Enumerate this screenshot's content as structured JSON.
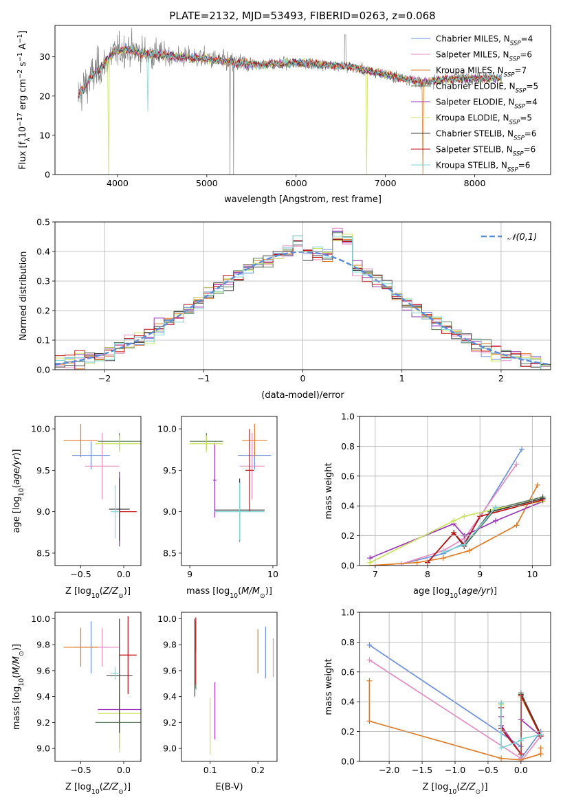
{
  "figure": {
    "title": "PLATE=2132, MJD=53493, FIBERID=0263, z=0.068"
  },
  "series_styles": [
    {
      "name": "Chabrier MILES",
      "nssp": "4",
      "color": "#6a8fdc"
    },
    {
      "name": "Salpeter MILES",
      "nssp": "6",
      "color": "#e78ac3"
    },
    {
      "name": "Kroupa MILES",
      "nssp": "7",
      "color": "#e07b24"
    },
    {
      "name": "Chabrier ELODIE",
      "nssp": "5",
      "color": "#5b7b5b"
    },
    {
      "name": "Salpeter ELODIE",
      "nssp": "4",
      "color": "#9b34b8"
    },
    {
      "name": "Kroupa ELODIE",
      "nssp": "5",
      "color": "#c8e35a"
    },
    {
      "name": "Chabrier STELIB",
      "nssp": "6",
      "color": "#3e3e3e"
    },
    {
      "name": "Salpeter STELIB",
      "nssp": "6",
      "color": "#c40f0f"
    },
    {
      "name": "Kroupa STELIB",
      "nssp": "6",
      "color": "#7fd6d6"
    }
  ],
  "chart_data": [
    {
      "id": "spectrum",
      "type": "line",
      "xlabel": "wavelength [Angstrom, rest frame]",
      "ylabel": "Flux [f_λ 10^-17 erg cm^-2 s^-1 A^-1]",
      "xlim": [
        3300,
        8850
      ],
      "ylim": [
        0,
        38
      ],
      "xticks": [
        4000,
        5000,
        6000,
        7000,
        8000
      ],
      "yticks": [
        0,
        10,
        20,
        30
      ],
      "legend_position": "upper-right",
      "data_color": "#7f7f7f",
      "continuum": [
        [
          3560,
          20
        ],
        [
          3650,
          23
        ],
        [
          3750,
          26
        ],
        [
          3850,
          28
        ],
        [
          3950,
          31
        ],
        [
          4100,
          32
        ],
        [
          4300,
          31
        ],
        [
          4500,
          30.5
        ],
        [
          4700,
          30
        ],
        [
          5000,
          29.5
        ],
        [
          5300,
          28.5
        ],
        [
          5600,
          28
        ],
        [
          6000,
          28.5
        ],
        [
          6300,
          28
        ],
        [
          6600,
          27.5
        ],
        [
          6800,
          26.5
        ],
        [
          7000,
          25.5
        ],
        [
          7200,
          24.5
        ],
        [
          7400,
          23.5
        ],
        [
          7600,
          24
        ],
        [
          7800,
          24.5
        ],
        [
          8000,
          24.5
        ],
        [
          8200,
          24.5
        ],
        [
          8300,
          24.5
        ]
      ]
    },
    {
      "id": "residuals",
      "type": "histogram",
      "xlabel": "(data-model)/error",
      "ylabel": "Normed distribution",
      "xlim": [
        -2.5,
        2.5
      ],
      "ylim": [
        0,
        0.5
      ],
      "xticks": [
        -2,
        -1,
        0,
        1,
        2
      ],
      "yticks": [
        0.0,
        0.1,
        0.2,
        0.3,
        0.4,
        0.5
      ],
      "bin_width": 0.1,
      "grid": true,
      "legend_position": "upper-right",
      "reference_curve": {
        "label": "𝒩(0,1)",
        "mean": 0,
        "sigma": 1,
        "color": "#5b8bd8"
      }
    },
    {
      "id": "age-vs-Z",
      "type": "errorbar",
      "xlabel": "Z [log10(Z/Z⊙)]",
      "ylabel": "age [log10(age/yr)]",
      "xlim": [
        -0.8,
        0.2
      ],
      "ylim": [
        8.35,
        10.15
      ],
      "xticks": [
        -0.5,
        0.0
      ],
      "yticks": [
        8.5,
        9.0,
        9.5,
        10.0
      ],
      "points": [
        {
          "series": 0,
          "x": -0.38,
          "xerr": 0.22,
          "y": 9.68,
          "yerr": 0.17
        },
        {
          "series": 1,
          "x": -0.25,
          "xerr": 0.2,
          "y": 9.55,
          "yerr": 0.4
        },
        {
          "series": 2,
          "x": -0.5,
          "xerr": 0.2,
          "y": 9.86,
          "yerr": 0.2
        },
        {
          "series": 3,
          "x": -0.05,
          "xerr": 0.25,
          "y": 9.85,
          "yerr": 0.1
        },
        {
          "series": 4,
          "x": -0.05,
          "xerr": 0.02,
          "y": 9.03,
          "yerr": 0.45
        },
        {
          "series": 5,
          "x": -0.05,
          "xerr": 0.28,
          "y": 9.82,
          "yerr": 0.1
        },
        {
          "series": 6,
          "x": -0.05,
          "xerr": 0.12,
          "y": 9.03,
          "yerr": 0.38
        },
        {
          "series": 7,
          "x": 0.05,
          "xerr": 0.1,
          "y": 9.0,
          "yerr": 0.0
        },
        {
          "series": 8,
          "x": -0.1,
          "xerr": 0.05,
          "y": 9.0,
          "yerr": 0.32
        }
      ]
    },
    {
      "id": "age-vs-mass",
      "type": "errorbar",
      "xlabel": "mass [log10(M/M⊙)]",
      "ylabel": "",
      "xlim": [
        8.9,
        10.05
      ],
      "ylim": [
        8.35,
        10.15
      ],
      "xticks": [
        9,
        10
      ],
      "yticks": [
        8.5,
        9.0,
        9.5,
        10.0
      ],
      "points": [
        {
          "series": 0,
          "x": 9.78,
          "xerr": 0.2,
          "y": 9.68,
          "yerr": 0.17
        },
        {
          "series": 1,
          "x": 9.75,
          "xerr": 0.15,
          "y": 9.55,
          "yerr": 0.4
        },
        {
          "series": 2,
          "x": 9.78,
          "xerr": 0.15,
          "y": 9.86,
          "yerr": 0.2
        },
        {
          "series": 3,
          "x": 9.2,
          "xerr": 0.2,
          "y": 9.85,
          "yerr": 0.1
        },
        {
          "series": 4,
          "x": 9.3,
          "xerr": 0.02,
          "y": 9.38,
          "yerr": 0.45
        },
        {
          "series": 5,
          "x": 9.2,
          "xerr": 0.2,
          "y": 9.82,
          "yerr": 0.1
        },
        {
          "series": 6,
          "x": 9.6,
          "xerr": 0.3,
          "y": 9.02,
          "yerr": 0.38
        },
        {
          "series": 7,
          "x": 9.72,
          "xerr": 0.05,
          "y": 9.5,
          "yerr": 0.5
        },
        {
          "series": 8,
          "x": 9.6,
          "xerr": 0.3,
          "y": 9.0,
          "yerr": 0.35
        }
      ]
    },
    {
      "id": "weight-vs-age",
      "type": "line",
      "xlabel": "age [log10(age/yr)]",
      "ylabel": "mass weight",
      "xlim": [
        6.7,
        10.35
      ],
      "ylim": [
        0,
        1
      ],
      "xticks": [
        7,
        8,
        9,
        10
      ],
      "yticks": [
        0.0,
        0.2,
        0.4,
        0.6,
        0.8,
        1.0
      ],
      "grid": true,
      "series": [
        {
          "series": 0,
          "x": [
            7.5,
            8.3,
            8.7,
            9.8
          ],
          "y": [
            0.01,
            0.08,
            0.15,
            0.78
          ]
        },
        {
          "series": 1,
          "x": [
            7.5,
            8.3,
            8.7,
            9.7
          ],
          "y": [
            0.01,
            0.1,
            0.18,
            0.68
          ]
        },
        {
          "series": 2,
          "x": [
            6.9,
            7.8,
            8.3,
            8.8,
            9.7,
            10.1
          ],
          "y": [
            0.0,
            0.02,
            0.05,
            0.1,
            0.27,
            0.54
          ]
        },
        {
          "series": 3,
          "x": [
            8.0,
            8.5,
            8.7,
            9.3,
            10.2
          ],
          "y": [
            0.02,
            0.22,
            0.13,
            0.38,
            0.46
          ]
        },
        {
          "series": 4,
          "x": [
            6.9,
            8.5,
            8.7,
            9.3,
            10.2
          ],
          "y": [
            0.05,
            0.28,
            0.2,
            0.3,
            0.43
          ]
        },
        {
          "series": 5,
          "x": [
            6.9,
            8.5,
            8.7,
            9.3,
            10.2
          ],
          "y": [
            0.02,
            0.3,
            0.33,
            0.38,
            0.43
          ]
        },
        {
          "series": 6,
          "x": [
            8.0,
            8.5,
            8.7,
            9.2,
            10.2
          ],
          "y": [
            0.02,
            0.22,
            0.13,
            0.36,
            0.45
          ]
        },
        {
          "series": 7,
          "x": [
            8.0,
            8.5,
            8.7,
            9.0,
            10.2
          ],
          "y": [
            0.02,
            0.22,
            0.14,
            0.33,
            0.44
          ]
        },
        {
          "series": 8,
          "x": [
            8.3,
            8.7,
            9.3
          ],
          "y": [
            0.09,
            0.14,
            0.39
          ]
        }
      ]
    },
    {
      "id": "mass-vs-Z",
      "type": "errorbar",
      "xlabel": "Z [log10(Z/Z⊙)]",
      "ylabel": "mass [log10(M/M⊙)]",
      "xlim": [
        -0.8,
        0.2
      ],
      "ylim": [
        8.9,
        10.05
      ],
      "xticks": [
        -0.5,
        0.0
      ],
      "yticks": [
        9.0,
        9.2,
        9.4,
        9.6,
        9.8,
        10.0
      ],
      "points": [
        {
          "series": 0,
          "x": -0.38,
          "xerr": 0.2,
          "y": 9.78,
          "yerr": 0.2
        },
        {
          "series": 1,
          "x": -0.25,
          "xerr": 0.2,
          "y": 9.78,
          "yerr": 0.15
        },
        {
          "series": 2,
          "x": -0.5,
          "xerr": 0.2,
          "y": 9.78,
          "yerr": 0.15
        },
        {
          "series": 3,
          "x": -0.05,
          "xerr": 0.28,
          "y": 9.2,
          "yerr": 0.2
        },
        {
          "series": 4,
          "x": -0.05,
          "xerr": 0.25,
          "y": 9.3,
          "yerr": 0.02
        },
        {
          "series": 5,
          "x": -0.05,
          "xerr": 0.25,
          "y": 9.27,
          "yerr": 0.3
        },
        {
          "series": 6,
          "x": -0.05,
          "xerr": 0.15,
          "y": 9.56,
          "yerr": 0.44
        },
        {
          "series": 7,
          "x": 0.05,
          "xerr": 0.1,
          "y": 9.72,
          "yerr": 0.3
        },
        {
          "series": 8,
          "x": -0.1,
          "xerr": 0.05,
          "y": 9.58,
          "yerr": 0.05
        }
      ]
    },
    {
      "id": "mass-vs-EBV",
      "type": "errorbar",
      "xlabel": "E(B-V)",
      "ylabel": "",
      "xlim": [
        0.04,
        0.24
      ],
      "ylim": [
        8.9,
        10.05
      ],
      "xticks": [
        0.1,
        0.2
      ],
      "yticks": [
        9.0,
        9.2,
        9.4,
        9.6,
        9.8,
        10.0
      ],
      "points": [
        {
          "series": 0,
          "x": 0.216,
          "xerr": 0,
          "y": 9.74,
          "yerr": 0.2
        },
        {
          "series": 1,
          "x": 0.232,
          "xerr": 0,
          "y": 9.7,
          "yerr": 0.15
        },
        {
          "series": 2,
          "x": 0.2,
          "xerr": 0,
          "y": 9.75,
          "yerr": 0.17
        },
        {
          "series": 3,
          "x": 0.07,
          "xerr": 0,
          "y": 9.72,
          "yerr": 0.26
        },
        {
          "series": 4,
          "x": 0.11,
          "xerr": 0,
          "y": 9.29,
          "yerr": 0.22
        },
        {
          "series": 5,
          "x": 0.1,
          "xerr": 0,
          "y": 9.17,
          "yerr": 0.22
        },
        {
          "series": 6,
          "x": 0.068,
          "xerr": 0,
          "y": 9.7,
          "yerr": 0.3
        },
        {
          "series": 7,
          "x": 0.07,
          "xerr": 0,
          "y": 9.75,
          "yerr": 0.26
        },
        {
          "series": 8,
          "x": 0.071,
          "xerr": 0,
          "y": 9.6,
          "yerr": 0.15
        }
      ]
    },
    {
      "id": "weight-vs-Z",
      "type": "line",
      "xlabel": "Z [log10(Z/Z⊙)]",
      "ylabel": "mass weight",
      "xlim": [
        -2.45,
        0.45
      ],
      "ylim": [
        0,
        1
      ],
      "xticks": [
        -2.0,
        -1.5,
        -1.0,
        -0.5,
        0.0
      ],
      "yticks": [
        0.0,
        0.2,
        0.4,
        0.6,
        0.8,
        1.0
      ],
      "grid": true,
      "series": [
        {
          "series": 0,
          "x": [
            -2.3,
            0.0,
            0.0,
            0.3,
            0.3
          ],
          "y": [
            0.78,
            0.1,
            0.02,
            0.2,
            0.17
          ]
        },
        {
          "series": 1,
          "x": [
            -2.3,
            0.0,
            0.0,
            0.3
          ],
          "y": [
            0.68,
            0.02,
            0.0,
            0.17
          ]
        },
        {
          "series": 2,
          "x": [
            -2.3,
            -2.3,
            -0.3,
            0.0,
            0.3,
            0.3
          ],
          "y": [
            0.54,
            0.27,
            0.02,
            0.01,
            0.05,
            0.09
          ]
        },
        {
          "series": 3,
          "x": [
            -0.3,
            -0.3,
            0.0,
            0.0,
            0.3
          ],
          "y": [
            0.38,
            0.24,
            0.05,
            0.46,
            0.18
          ]
        },
        {
          "series": 4,
          "x": [
            -0.3,
            -0.3,
            0.0,
            0.0,
            0.3
          ],
          "y": [
            0.3,
            0.24,
            0.05,
            0.28,
            0.17
          ]
        },
        {
          "series": 5,
          "x": [
            -0.3,
            -0.3,
            0.0,
            0.0,
            0.3
          ],
          "y": [
            0.38,
            0.22,
            0.05,
            0.43,
            0.17
          ]
        },
        {
          "series": 6,
          "x": [
            -0.3,
            -0.3,
            0.0,
            0.0,
            0.3
          ],
          "y": [
            0.39,
            0.22,
            0.05,
            0.45,
            0.18
          ]
        },
        {
          "series": 7,
          "x": [
            -0.3,
            -0.3,
            0.0,
            0.0,
            0.3
          ],
          "y": [
            0.36,
            0.22,
            0.05,
            0.44,
            0.17
          ]
        },
        {
          "series": 8,
          "x": [
            -0.3,
            -0.3,
            0.0,
            0.0,
            0.3
          ],
          "y": [
            0.39,
            0.09,
            0.14,
            0.15,
            0.18
          ]
        }
      ]
    }
  ]
}
